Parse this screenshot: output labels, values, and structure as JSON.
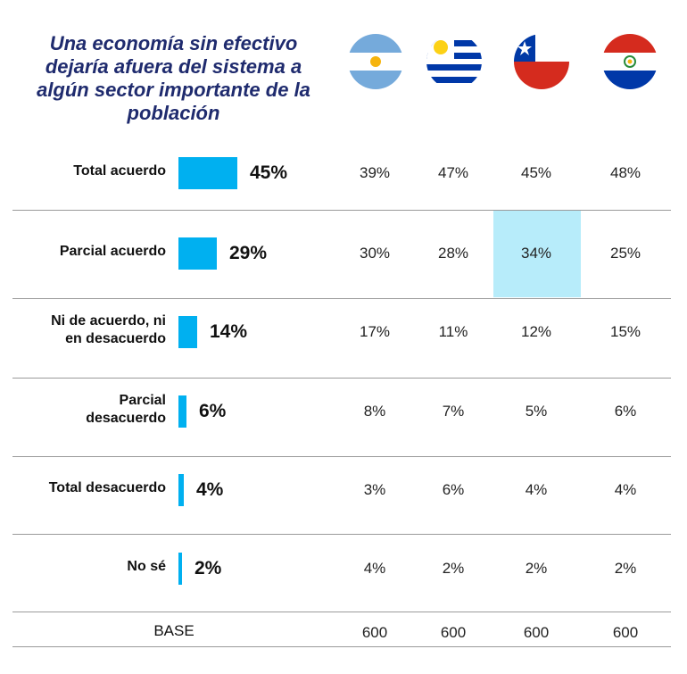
{
  "title": "Una economía sin efectivo dejaría afuera del sistema a algún sector importante de la población",
  "countries": [
    {
      "icon": "argentina-flag-icon"
    },
    {
      "icon": "uruguay-flag-icon"
    },
    {
      "icon": "chile-flag-icon"
    },
    {
      "icon": "paraguay-flag-icon"
    }
  ],
  "colors": {
    "bar": "#00b0f0",
    "highlight": "#b7ecfa",
    "title": "#1f2b6e"
  },
  "chart_data": {
    "type": "bar",
    "orientation": "horizontal",
    "categories": [
      "Total acuerdo",
      "Parcial acuerdo",
      "Ni de acuerdo, ni en desacuerdo",
      "Parcial desacuerdo",
      "Total desacuerdo",
      "No sé"
    ],
    "values": [
      45,
      29,
      14,
      6,
      4,
      2
    ],
    "value_labels": [
      "45%",
      "29%",
      "14%",
      "6%",
      "4%",
      "2%"
    ],
    "unit": "%"
  },
  "table": {
    "rows": [
      {
        "label_lines": [
          "Total acuerdo"
        ],
        "total": "45%",
        "cells": [
          "39%",
          "47%",
          "45%",
          "48%"
        ]
      },
      {
        "label_lines": [
          "Parcial acuerdo"
        ],
        "total": "29%",
        "cells": [
          "30%",
          "28%",
          "34%",
          "25%"
        ]
      },
      {
        "label_lines": [
          "Ni de acuerdo, ni",
          "en desacuerdo"
        ],
        "total": "14%",
        "cells": [
          "17%",
          "11%",
          "12%",
          "15%"
        ]
      },
      {
        "label_lines": [
          "Parcial",
          "desacuerdo"
        ],
        "total": "6%",
        "cells": [
          "8%",
          "7%",
          "5%",
          "6%"
        ]
      },
      {
        "label_lines": [
          "Total desacuerdo"
        ],
        "total": "4%",
        "cells": [
          "3%",
          "6%",
          "4%",
          "4%"
        ]
      },
      {
        "label_lines": [
          "No sé"
        ],
        "total": "2%",
        "cells": [
          "4%",
          "2%",
          "2%",
          "2%"
        ]
      }
    ],
    "highlighted_cell": {
      "row": 1,
      "col": 2
    },
    "base": {
      "label": "BASE",
      "cells": [
        "600",
        "600",
        "600",
        "600"
      ]
    }
  }
}
